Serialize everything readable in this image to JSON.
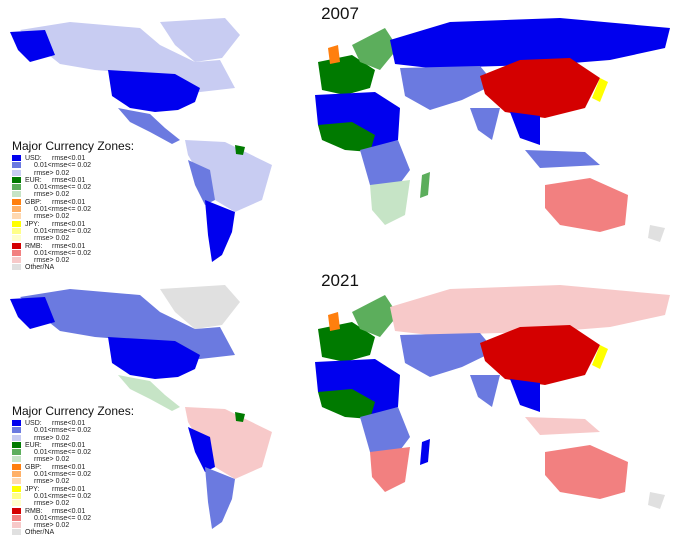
{
  "panels": [
    {
      "year": "2007"
    },
    {
      "year": "2021"
    }
  ],
  "legend": {
    "title": "Major Currency Zones:",
    "groups": [
      {
        "name": "USD:",
        "entries": [
          {
            "label": "rmse<0.01",
            "color": "#0000ee"
          },
          {
            "label": "0.01<rmse<= 0.02",
            "color": "#6b7ae0"
          },
          {
            "label": "rmse> 0.02",
            "color": "#c8ccf2"
          }
        ]
      },
      {
        "name": "EUR:",
        "entries": [
          {
            "label": "rmse<0.01",
            "color": "#007a00"
          },
          {
            "label": "0.01<rmse<= 0.02",
            "color": "#5cae5c"
          },
          {
            "label": "rmse> 0.02",
            "color": "#c6e4c6"
          }
        ]
      },
      {
        "name": "GBP:",
        "entries": [
          {
            "label": "rmse<0.01",
            "color": "#ff7f0e"
          },
          {
            "label": "0.01<rmse<= 0.02",
            "color": "#ffb066"
          },
          {
            "label": "rmse> 0.02",
            "color": "#ffd8b0"
          }
        ]
      },
      {
        "name": "JPY:",
        "entries": [
          {
            "label": "rmse<0.01",
            "color": "#ffff00"
          },
          {
            "label": "0.01<rmse<= 0.02",
            "color": "#ffff88"
          },
          {
            "label": "rmse> 0.02",
            "color": "#ffffcc"
          }
        ]
      },
      {
        "name": "RMB:",
        "entries": [
          {
            "label": "rmse<0.01",
            "color": "#d40000"
          },
          {
            "label": "0.01<rmse<= 0.02",
            "color": "#f28080"
          },
          {
            "label": "rmse> 0.02",
            "color": "#f7c9c9"
          }
        ]
      }
    ],
    "other": {
      "label": "Other/NA",
      "color": "#e0e0e0"
    }
  }
}
